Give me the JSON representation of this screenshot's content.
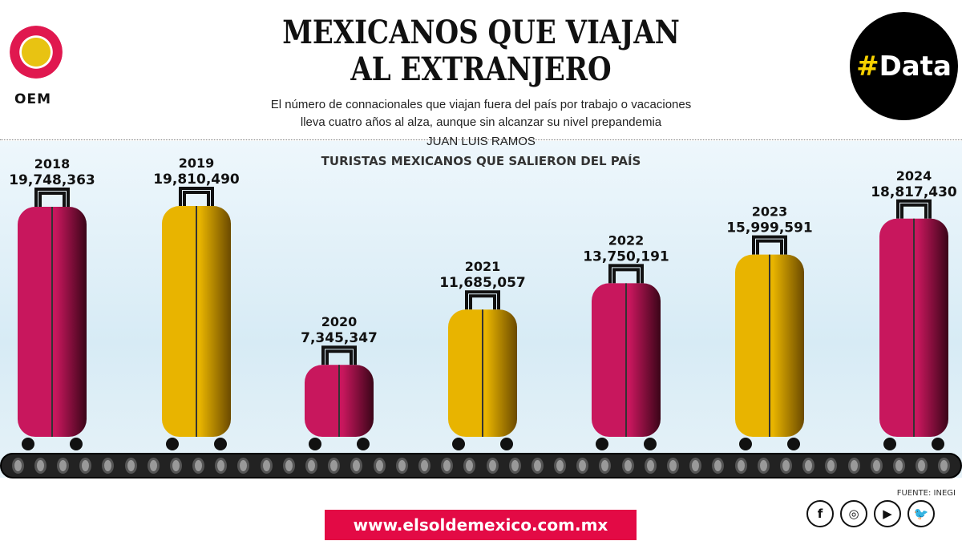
{
  "header": {
    "title_line1": "MEXICANOS QUE VIAJAN",
    "title_line2": "AL EXTRANJERO",
    "subtitle_line1": "El número de connacionales que viajan fuera del país por trabajo o vacaciones",
    "subtitle_line2": "lleva cuatro años al alza, aunque sin alcanzar su nivel prepandemia",
    "author": "JUAN LUIS RAMOS",
    "logo_text": "OEM",
    "badge_hash": "#",
    "badge_text": "Data"
  },
  "chart_data": {
    "type": "bar",
    "title": "TURISTAS MEXICANOS QUE SALIERON DEL PAÍS",
    "categories": [
      "2018",
      "2019",
      "2020",
      "2021",
      "2022",
      "2023",
      "2024"
    ],
    "values": [
      19748363,
      19810490,
      7345347,
      11685057,
      13750191,
      15999591,
      18817430
    ],
    "value_labels": [
      "19,748,363",
      "19,810,490",
      "7,345,347",
      "11,685,057",
      "13,750,191",
      "15,999,591",
      "18,817,430"
    ],
    "colors": [
      "#c8175d",
      "#e8b400",
      "#c8175d",
      "#e8b400",
      "#c8175d",
      "#e8b400",
      "#c8175d"
    ]
  },
  "footer": {
    "source": "FUENTE: INEGI",
    "url": "www.elsoldemexico.com.mx",
    "social": [
      {
        "icon": "facebook-icon",
        "glyph": "f"
      },
      {
        "icon": "instagram-icon",
        "glyph": "◎"
      },
      {
        "icon": "youtube-icon",
        "glyph": "▶"
      },
      {
        "icon": "twitter-icon",
        "glyph": "🐦"
      }
    ]
  }
}
